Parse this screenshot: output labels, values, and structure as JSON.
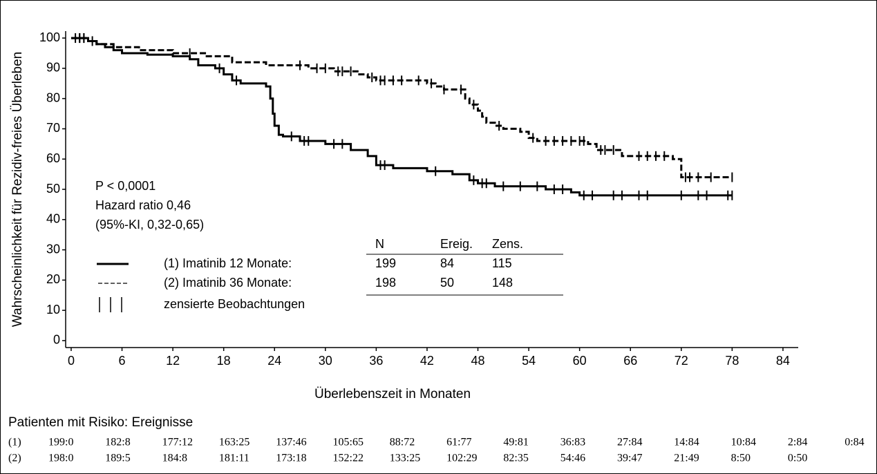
{
  "chart_data": {
    "type": "step",
    "y_label": "Wahrscheinlichkeit für Rezidiv-freies Überleben",
    "x_label": "Überlebenszeit in Monaten",
    "xlim": [
      -0.65,
      85.8
    ],
    "ylim": [
      -2.3,
      102.3
    ],
    "xticks": [
      0,
      6,
      12,
      18,
      24,
      30,
      36,
      42,
      48,
      54,
      60,
      66,
      72,
      78,
      84
    ],
    "yticks": [
      0,
      10,
      20,
      30,
      40,
      50,
      60,
      70,
      80,
      90,
      100
    ],
    "series": [
      {
        "name": "(1) Imatinib 12 Monate:",
        "color": "#000000",
        "line_style": "solid",
        "x": [
          0,
          2,
          3,
          4,
          5,
          6,
          9,
          12,
          14,
          15,
          17,
          18,
          19,
          20,
          23,
          23.5,
          23.8,
          24,
          24.5,
          25,
          27,
          30,
          33,
          35,
          36,
          38,
          42,
          45,
          47,
          48,
          50,
          56,
          59,
          60,
          78
        ],
        "values": [
          100,
          99,
          98,
          97,
          96,
          95,
          94.5,
          94,
          93,
          91,
          90,
          88,
          86,
          85,
          84,
          80,
          75,
          71,
          68,
          67.5,
          66,
          65,
          63,
          61,
          58,
          57,
          56,
          55,
          53,
          52,
          51,
          50,
          49,
          48,
          48
        ],
        "censored_x": [
          1,
          1.5,
          2.5,
          17.5,
          19.5,
          26,
          27.5,
          28,
          31,
          32,
          36.5,
          37,
          43,
          47.5,
          48.5,
          49,
          51,
          53,
          55,
          57,
          58,
          60.5,
          61.5,
          64,
          65,
          67,
          68,
          72,
          74,
          75,
          77.5,
          78
        ],
        "censored_y": [
          100,
          100,
          99,
          90,
          86,
          67.5,
          66,
          66,
          65,
          65,
          58,
          58,
          56,
          53,
          52,
          52,
          51,
          51,
          51,
          50,
          50,
          48,
          48,
          48,
          48,
          48,
          48,
          48,
          48,
          48,
          48,
          48
        ]
      },
      {
        "name": "(2) Imatinib 36 Monate:",
        "color": "#000000",
        "line_style": "dashed",
        "x": [
          0,
          2,
          3,
          5,
          8,
          12,
          16,
          19,
          23,
          28,
          31,
          34,
          35,
          36,
          42,
          43,
          44,
          46.5,
          47,
          48,
          48.5,
          49,
          50,
          51,
          53,
          54,
          55,
          61,
          62,
          65,
          71,
          72,
          78
        ],
        "values": [
          100,
          99,
          98,
          97,
          96,
          95,
          94,
          92,
          91,
          90,
          89,
          88,
          87,
          86,
          85,
          84,
          83,
          80,
          78,
          76,
          74,
          72,
          71,
          70,
          69,
          67,
          66,
          65,
          63,
          61,
          60,
          54,
          54
        ],
        "censored_x": [
          0.5,
          1,
          1.5,
          14,
          27,
          29,
          30,
          31.5,
          32,
          33,
          35.5,
          36.5,
          37,
          38,
          39,
          41,
          42.5,
          44,
          46,
          47.5,
          50.5,
          54.5,
          56,
          57,
          58,
          59,
          60,
          60.5,
          62.5,
          63,
          64,
          67,
          68,
          69,
          70,
          72.5,
          73,
          74,
          75.5,
          78
        ],
        "censored_y": [
          100,
          100,
          100,
          95,
          91,
          90,
          90,
          89,
          89,
          89,
          87,
          86,
          86,
          86,
          86,
          86,
          85,
          83,
          83,
          78,
          71,
          67,
          66,
          66,
          66,
          66,
          66,
          66,
          63,
          63,
          63,
          61,
          61,
          61,
          61,
          54,
          54,
          54,
          54,
          54
        ]
      }
    ],
    "annotations": [
      "P < 0,0001",
      "Hazard ratio 0,46",
      "(95%-KI, 0,32-0,65)"
    ],
    "legend_table": {
      "headers": [
        "N",
        "Ereig.",
        "Zens."
      ],
      "rows": [
        [
          199,
          84,
          115
        ],
        [
          198,
          50,
          148
        ]
      ]
    },
    "censor_label": "zensierte Beobachtungen",
    "risk_table": {
      "title": "Patienten mit Risiko: Ereignisse",
      "rows": [
        {
          "label": "(1)",
          "values": [
            "199:0",
            "182:8",
            "177:12",
            "163:25",
            "137:46",
            "105:65",
            "88:72",
            "61:77",
            "49:81",
            "36:83",
            "27:84",
            "14:84",
            "10:84",
            "2:84",
            "0:84"
          ]
        },
        {
          "label": "(2)",
          "values": [
            "198:0",
            "189:5",
            "184:8",
            "181:11",
            "173:18",
            "152:22",
            "133:25",
            "102:29",
            "82:35",
            "54:46",
            "39:47",
            "21:49",
            "8:50",
            "0:50"
          ]
        }
      ]
    }
  }
}
